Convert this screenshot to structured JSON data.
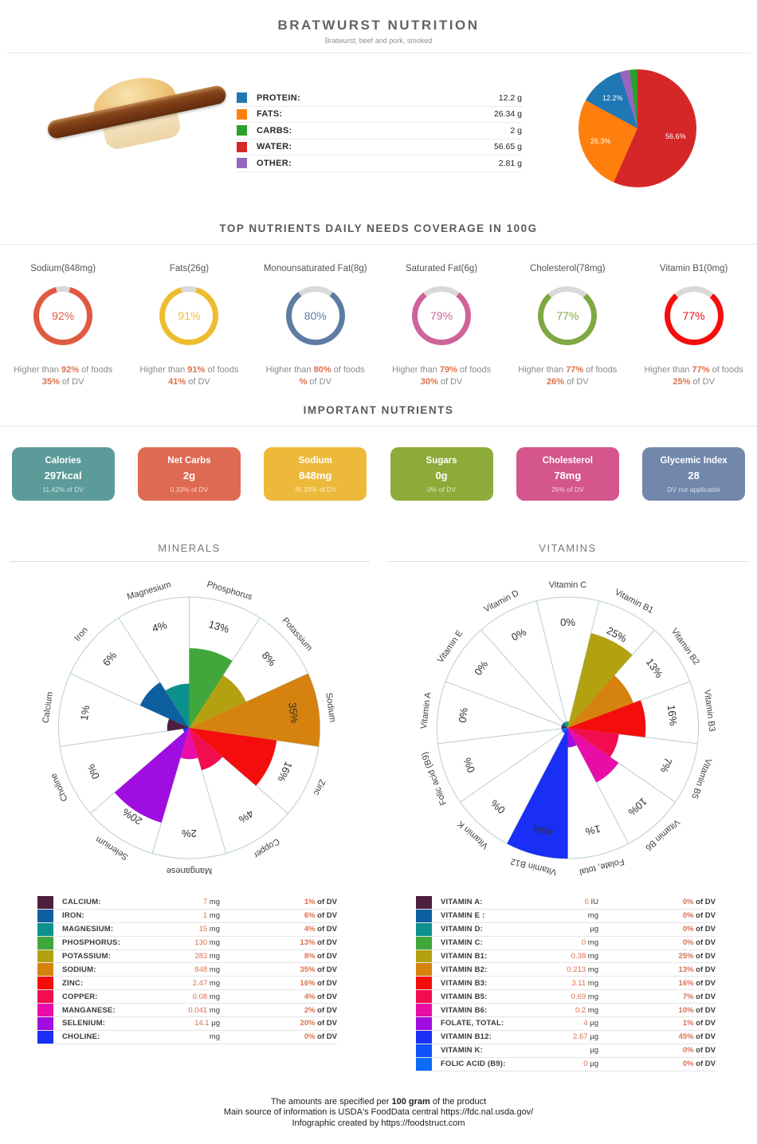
{
  "header": {
    "title": "BRATWURST NUTRITION",
    "subtitle": "Bratwurst, beef and pork, smoked"
  },
  "sections": {
    "coverage": "TOP NUTRIENTS DAILY NEEDS COVERAGE IN 100G",
    "important": "IMPORTANT NUTRIENTS",
    "minerals": "MINERALS",
    "vitamins": "VITAMINS"
  },
  "macros": {
    "rows": [
      {
        "label": "PROTEIN:",
        "value": "12.2 g",
        "color": "#1f77b4"
      },
      {
        "label": "FATS:",
        "value": "26.34 g",
        "color": "#ff7f0e"
      },
      {
        "label": "CARBS:",
        "value": "2 g",
        "color": "#2ca02c"
      },
      {
        "label": "WATER:",
        "value": "56.65 g",
        "color": "#d62728"
      },
      {
        "label": "OTHER:",
        "value": "2.81 g",
        "color": "#9467bd"
      }
    ]
  },
  "chart_data": [
    {
      "type": "pie",
      "title": "Macronutrient share of 100g",
      "labels": [
        "Water",
        "Fats",
        "Protein",
        "Other",
        "Carbs"
      ],
      "values_percent": [
        56.6,
        26.3,
        12.2,
        2.8,
        2.0
      ],
      "percent_labels": [
        "56.6%",
        "26.3%",
        "12.2%",
        "",
        ""
      ],
      "colors": [
        "#d62728",
        "#ff7f0e",
        "#1f77b4",
        "#9467bd",
        "#2ca02c"
      ],
      "legend_position": "left"
    },
    {
      "type": "polar",
      "title": "MINERALS",
      "max": 35,
      "start_angle_deg": 0,
      "categories": [
        "Phosphorus",
        "Potassium",
        "Sodium",
        "Zinc",
        "Copper",
        "Manganese",
        "Selenium",
        "Choline",
        "Calcium",
        "Iron",
        "Magnesium"
      ],
      "values": [
        13,
        8,
        35,
        16,
        4,
        2,
        20,
        0,
        1,
        6,
        4
      ],
      "colors": [
        "#41a63c",
        "#b3a10f",
        "#d6820e",
        "#f40d0d",
        "#f20d4f",
        "#e90da8",
        "#a00de0",
        "#1a2ff5",
        "#4d1f3f",
        "#0e5fa0",
        "#0e918d"
      ],
      "grid": true
    },
    {
      "type": "polar",
      "title": "VITAMINS",
      "max": 45,
      "start_angle_deg": -13.846,
      "categories": [
        "Vitamin C",
        "Vitamin B1",
        "Vitamin B2",
        "Vitamin B3",
        "Vitamin B5",
        "Vitamin B6",
        "Folate, total",
        "Vitamin B12",
        "Vitamin K",
        "Folic acid (B9)",
        "Vitamin A",
        "Vitamin E",
        "Vitamin D"
      ],
      "values": [
        0,
        25,
        13,
        16,
        7,
        10,
        1,
        45,
        0,
        0,
        0,
        0,
        0
      ],
      "colors": [
        "#41a63c",
        "#b3a10f",
        "#d6820e",
        "#f40d0d",
        "#f20d4f",
        "#e90da8",
        "#a00de0",
        "#1a2ff5",
        "#0e52fa",
        "#0a6cfc",
        "#4d1f3f",
        "#0e5fa0",
        "#0e918d"
      ],
      "grid": true
    }
  ],
  "donuts": {
    "higher_prefix": "Higher than",
    "higher_suffix": "of foods",
    "dv_suffix": "of DV",
    "items": [
      {
        "title": "Sodium(848mg)",
        "percent": 92,
        "color": "#e05a43",
        "dv": "35%"
      },
      {
        "title": "Fats(26g)",
        "percent": 91,
        "color": "#eebd2f",
        "dv": "41%"
      },
      {
        "title": "Monounsaturated Fat(8g)",
        "percent": 80,
        "color": "#5e7ca3",
        "dv": "%"
      },
      {
        "title": "Saturated Fat(6g)",
        "percent": 79,
        "color": "#ce639b",
        "dv": "30%"
      },
      {
        "title": "Cholesterol(78mg)",
        "percent": 77,
        "color": "#7fa844",
        "dv": "26%"
      },
      {
        "title": "Vitamin B1(0mg)",
        "percent": 77,
        "color": "#f50c0c",
        "dv": "25%"
      }
    ]
  },
  "cards": [
    {
      "title": "Calories",
      "value": "297kcal",
      "sub": "11.42% of DV",
      "color": "#5b9b99"
    },
    {
      "title": "Net Carbs",
      "value": "2g",
      "sub": "0.33% of DV",
      "color": "#df6a52"
    },
    {
      "title": "Sodium",
      "value": "848mg",
      "sub": "35.33% of DV",
      "color": "#edb93a"
    },
    {
      "title": "Sugars",
      "value": "0g",
      "sub": "0% of DV",
      "color": "#8dab39"
    },
    {
      "title": "Cholesterol",
      "value": "78mg",
      "sub": "26% of DV",
      "color": "#d4568d"
    },
    {
      "title": "Glycemic Index",
      "value": "28",
      "sub": "DV not applicable",
      "color": "#7187ac"
    }
  ],
  "minerals_table": [
    {
      "name": "CALCIUM:",
      "value": "7",
      "unit": "mg",
      "dv": "1%",
      "color": "#4d1f3f"
    },
    {
      "name": "IRON:",
      "value": "1",
      "unit": "mg",
      "dv": "6%",
      "color": "#0e5fa0"
    },
    {
      "name": "MAGNESIUM:",
      "value": "15",
      "unit": "mg",
      "dv": "4%",
      "color": "#0e918d"
    },
    {
      "name": "PHOSPHORUS:",
      "value": "130",
      "unit": "mg",
      "dv": "13%",
      "color": "#41a63c"
    },
    {
      "name": "POTASSIUM:",
      "value": "283",
      "unit": "mg",
      "dv": "8%",
      "color": "#b3a10f"
    },
    {
      "name": "SODIUM:",
      "value": "848",
      "unit": "mg",
      "dv": "35%",
      "color": "#d6820e"
    },
    {
      "name": "ZINC:",
      "value": "2.47",
      "unit": "mg",
      "dv": "16%",
      "color": "#f40d0d"
    },
    {
      "name": "COPPER:",
      "value": "0.08",
      "unit": "mg",
      "dv": "4%",
      "color": "#f20d4f"
    },
    {
      "name": "MANGANESE:",
      "value": "0.041",
      "unit": "mg",
      "dv": "2%",
      "color": "#e90da8"
    },
    {
      "name": "SELENIUM:",
      "value": "14.1",
      "unit": "µg",
      "dv": "20%",
      "color": "#a00de0"
    },
    {
      "name": "CHOLINE:",
      "value": "",
      "unit": "mg",
      "dv": "0%",
      "color": "#1a2ff5"
    }
  ],
  "vitamins_table": [
    {
      "name": "VITAMIN A:",
      "value": "0",
      "unit": "IU",
      "dv": "0%",
      "color": "#4d1f3f"
    },
    {
      "name": "VITAMIN E :",
      "value": "",
      "unit": "mg",
      "dv": "0%",
      "color": "#0e5fa0"
    },
    {
      "name": "VITAMIN D:",
      "value": "",
      "unit": "µg",
      "dv": "0%",
      "color": "#0e918d"
    },
    {
      "name": "VITAMIN C:",
      "value": "0",
      "unit": "mg",
      "dv": "0%",
      "color": "#41a63c"
    },
    {
      "name": "VITAMIN B1:",
      "value": "0.38",
      "unit": "mg",
      "dv": "25%",
      "color": "#b3a10f"
    },
    {
      "name": "VITAMIN B2:",
      "value": "0.213",
      "unit": "mg",
      "dv": "13%",
      "color": "#d6820e"
    },
    {
      "name": "VITAMIN B3:",
      "value": "3.11",
      "unit": "mg",
      "dv": "16%",
      "color": "#f40d0d"
    },
    {
      "name": "VITAMIN B5:",
      "value": "0.69",
      "unit": "mg",
      "dv": "7%",
      "color": "#f20d4f"
    },
    {
      "name": "VITAMIN B6:",
      "value": "0.2",
      "unit": "mg",
      "dv": "10%",
      "color": "#e90da8"
    },
    {
      "name": "FOLATE, TOTAL:",
      "value": "4",
      "unit": "µg",
      "dv": "1%",
      "color": "#a00de0"
    },
    {
      "name": "VITAMIN B12:",
      "value": "2.67",
      "unit": "µg",
      "dv": "45%",
      "color": "#1a2ff5"
    },
    {
      "name": "VITAMIN K:",
      "value": "",
      "unit": "µg",
      "dv": "0%",
      "color": "#0e52fa"
    },
    {
      "name": "FOLIC ACID (B9):",
      "value": "0",
      "unit": "µg",
      "dv": "0%",
      "color": "#0a6cfc"
    }
  ],
  "table_labels": {
    "of_dv": "of DV"
  },
  "footer": {
    "line1_pre": "The amounts are specified per ",
    "line1_bold": "100 gram",
    "line1_post": " of the product",
    "line2": "Main source of information is USDA's FoodData central https://fdc.nal.usda.gov/",
    "line3": "Infographic created by https://foodstruct.com"
  }
}
